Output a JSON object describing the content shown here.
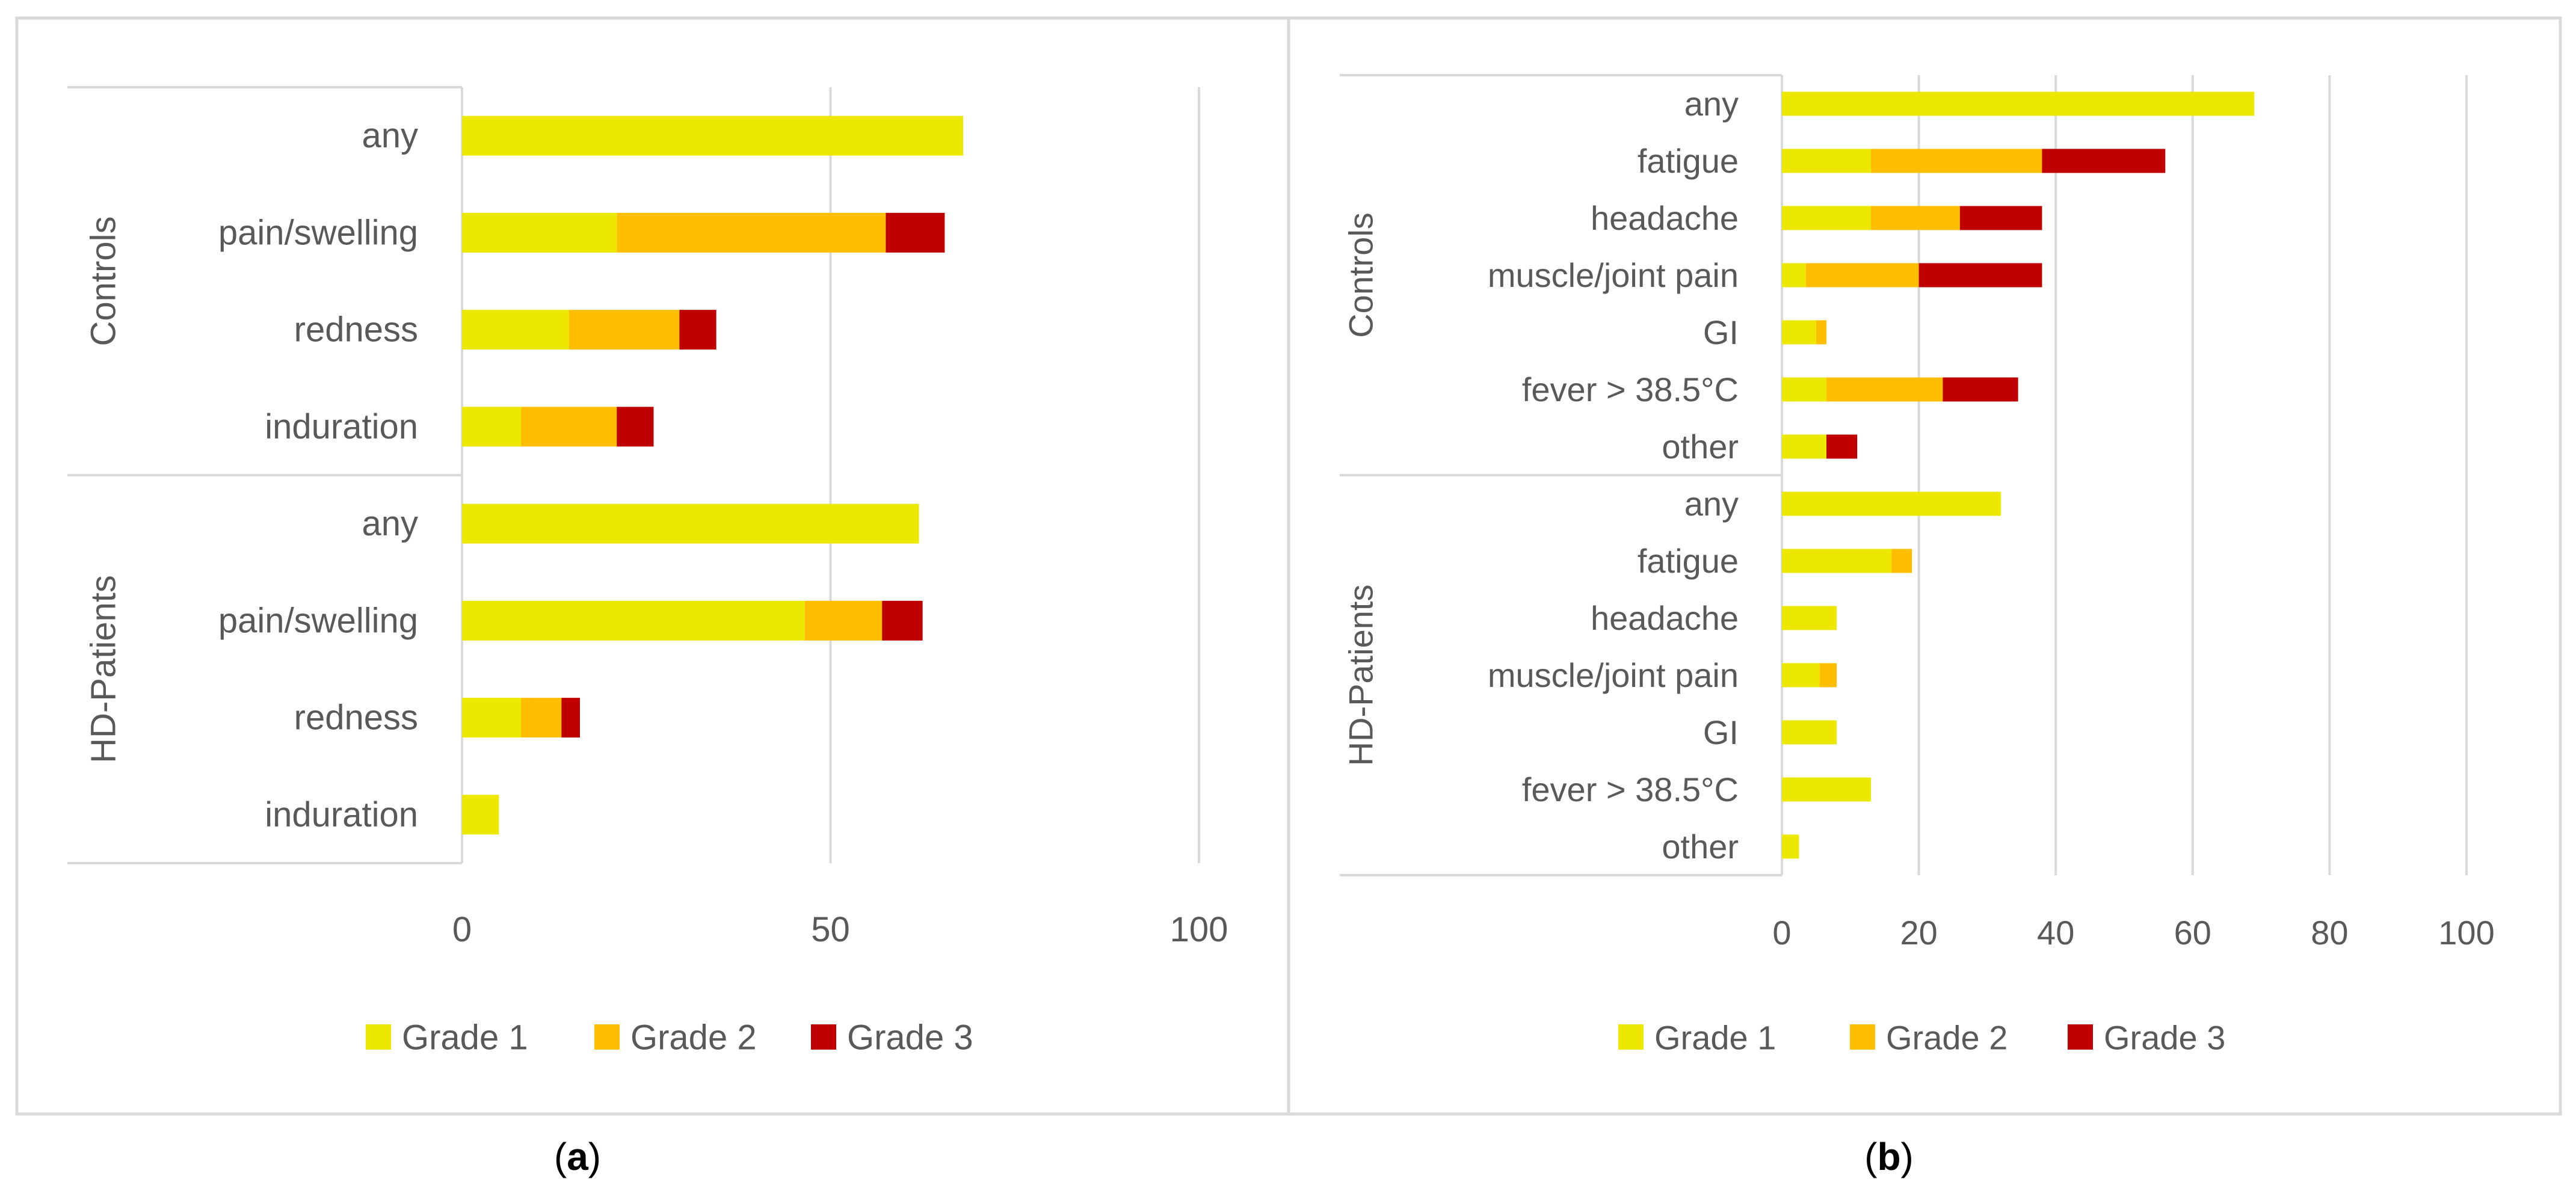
{
  "colors": {
    "grade1": "#EDE800",
    "grade2": "#FFBE00",
    "grade3": "#C00000",
    "grid": "#D9D9D9",
    "text": "#595959",
    "frame": "#D9D9D9"
  },
  "chart_data": [
    {
      "type": "bar",
      "orientation": "horizontal",
      "stacked": true,
      "panel_label_open": "(",
      "panel_label": "a",
      "panel_label_close": ")",
      "groups": [
        {
          "name": "Controls",
          "categories": [
            "any",
            "pain/swelling",
            "redness",
            "induration"
          ]
        },
        {
          "name": "HD-Patients",
          "categories": [
            "any",
            "pain/swelling",
            "redness",
            "induration"
          ]
        }
      ],
      "series": [
        {
          "name": "Grade 1",
          "values": [
            68,
            21,
            14.5,
            8,
            62,
            46.5,
            8,
            5
          ]
        },
        {
          "name": "Grade 2",
          "values": [
            0,
            36.5,
            15,
            13,
            0,
            10.5,
            5.5,
            0
          ]
        },
        {
          "name": "Grade 3",
          "values": [
            0,
            8,
            5,
            5,
            0,
            5.5,
            2.5,
            0
          ]
        }
      ],
      "xlim": [
        0,
        100
      ],
      "xticks": [
        "0",
        "50",
        "100"
      ],
      "grid": true,
      "legend": "bottom"
    },
    {
      "type": "bar",
      "orientation": "horizontal",
      "stacked": true,
      "panel_label_open": "(",
      "panel_label": "b",
      "panel_label_close": ")",
      "groups": [
        {
          "name": "Controls",
          "categories": [
            "any",
            "fatigue",
            "headache",
            "muscle/joint pain",
            "GI",
            "fever > 38.5°C",
            "other"
          ]
        },
        {
          "name": "HD-Patients",
          "categories": [
            "any",
            "fatigue",
            "headache",
            "muscle/joint pain",
            "GI",
            "fever > 38.5°C",
            "other"
          ]
        }
      ],
      "series": [
        {
          "name": "Grade 1",
          "values": [
            69,
            13,
            13,
            3.5,
            5,
            6.5,
            6.5,
            32,
            16,
            8,
            5.5,
            8,
            13,
            2.5
          ]
        },
        {
          "name": "Grade 2",
          "values": [
            0,
            25,
            13,
            16.5,
            1.5,
            17,
            0,
            0,
            3,
            0,
            2.5,
            0,
            0,
            0
          ]
        },
        {
          "name": "Grade 3",
          "values": [
            0,
            18,
            12,
            18,
            0,
            11,
            4.5,
            0,
            0,
            0,
            0,
            0,
            0,
            0
          ]
        }
      ],
      "xlim": [
        0,
        100
      ],
      "xticks": [
        "0",
        "20",
        "40",
        "60",
        "80",
        "100"
      ],
      "grid": true,
      "legend": "bottom"
    }
  ]
}
